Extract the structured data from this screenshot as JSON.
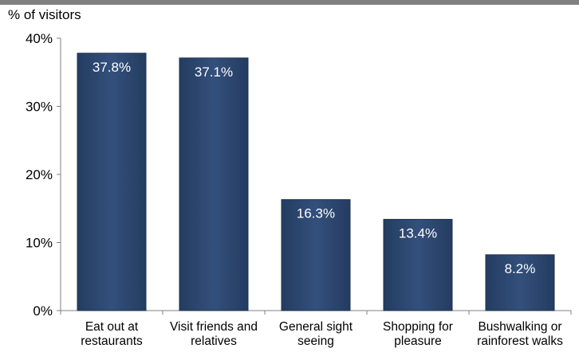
{
  "chart_data": {
    "type": "bar",
    "ylabel": "% of visitors",
    "categories": [
      [
        "Eat out at",
        "restaurants"
      ],
      [
        "Visit friends and",
        "relatives"
      ],
      [
        "General sight",
        "seeing"
      ],
      [
        "Shopping for",
        "pleasure"
      ],
      [
        "Bushwalking or",
        "rainforest walks"
      ]
    ],
    "values": [
      37.8,
      37.1,
      16.3,
      13.4,
      8.2
    ],
    "value_labels": [
      "37.8%",
      "37.1%",
      "16.3%",
      "13.4%",
      "8.2%"
    ],
    "yticks": [
      "0%",
      "10%",
      "20%",
      "30%",
      "40%"
    ],
    "ylim": [
      0,
      40
    ],
    "grid": false,
    "legend": "none",
    "colors": {
      "bar": "#2E4A73",
      "bar_edge": "#1F3352",
      "axis": "#808080",
      "top_band": "#808080"
    }
  }
}
